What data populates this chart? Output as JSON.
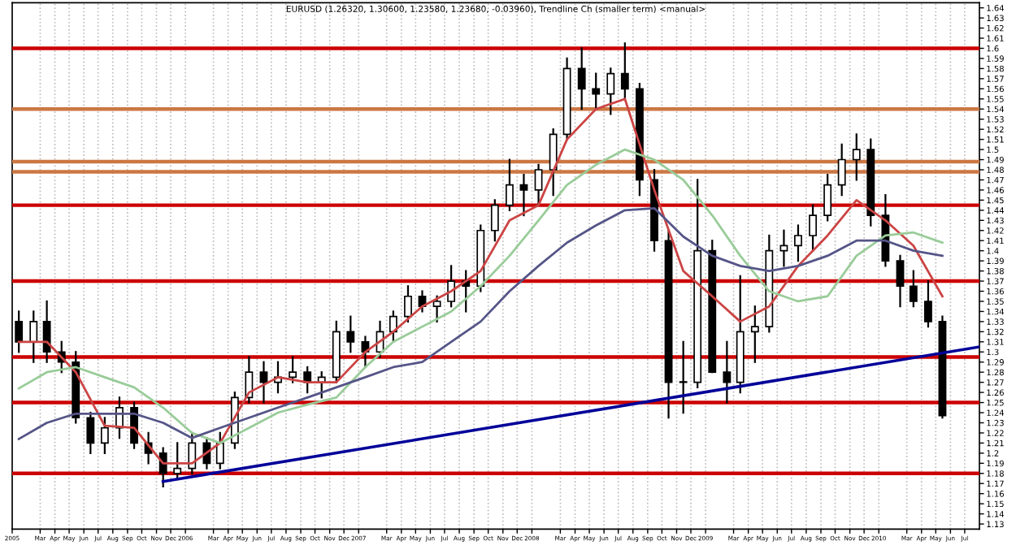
{
  "chart_data": {
    "type": "candlestick",
    "title": "EURUSD (1.26320, 1.30600, 1.23580, 1.23680, -0.03960), Trendline Ch (smaller term) <manual>",
    "x": [
      "2005-01-15",
      "2005-02-15",
      "2005-03-15",
      "2005-04-15",
      "2005-05-15",
      "2005-06-15",
      "2005-07-15",
      "2005-08-15",
      "2005-09-15",
      "2005-10-15",
      "2005-11-15",
      "2005-12-15",
      "2006-01-15",
      "2006-02-15",
      "2006-03-15",
      "2006-04-15",
      "2006-05-15",
      "2006-06-15",
      "2006-07-15",
      "2006-08-15",
      "2006-09-15",
      "2006-10-15",
      "2006-11-15",
      "2006-12-15",
      "2007-01-15",
      "2007-02-15",
      "2007-03-15",
      "2007-04-15",
      "2007-05-15",
      "2007-06-15",
      "2007-07-15",
      "2007-08-15",
      "2007-09-15",
      "2007-10-15",
      "2007-11-15",
      "2007-12-15",
      "2008-01-15",
      "2008-02-15",
      "2008-03-15",
      "2008-04-15",
      "2008-05-15",
      "2008-06-15",
      "2008-07-15",
      "2008-08-15",
      "2008-09-15",
      "2008-10-15",
      "2008-11-15",
      "2008-12-15",
      "2009-01-15",
      "2009-02-15",
      "2009-03-15",
      "2009-04-15",
      "2009-05-15",
      "2009-06-15",
      "2009-07-15",
      "2009-08-15",
      "2009-09-15",
      "2009-10-15",
      "2009-11-15",
      "2009-12-15",
      "2010-01-15",
      "2010-02-15",
      "2010-03-15",
      "2010-04-15",
      "2010-05-15"
    ],
    "ohlc": [
      [
        1.33,
        1.34,
        1.3,
        1.31
      ],
      [
        1.31,
        1.34,
        1.29,
        1.33
      ],
      [
        1.33,
        1.35,
        1.29,
        1.3
      ],
      [
        1.3,
        1.31,
        1.28,
        1.29
      ],
      [
        1.29,
        1.3,
        1.23,
        1.235
      ],
      [
        1.235,
        1.24,
        1.2,
        1.21
      ],
      [
        1.21,
        1.235,
        1.2,
        1.225
      ],
      [
        1.225,
        1.255,
        1.215,
        1.245
      ],
      [
        1.245,
        1.25,
        1.205,
        1.21
      ],
      [
        1.21,
        1.22,
        1.19,
        1.2
      ],
      [
        1.2,
        1.205,
        1.167,
        1.18
      ],
      [
        1.18,
        1.21,
        1.175,
        1.185
      ],
      [
        1.185,
        1.22,
        1.18,
        1.21
      ],
      [
        1.21,
        1.215,
        1.185,
        1.19
      ],
      [
        1.19,
        1.22,
        1.185,
        1.21
      ],
      [
        1.21,
        1.26,
        1.205,
        1.255
      ],
      [
        1.255,
        1.295,
        1.25,
        1.28
      ],
      [
        1.28,
        1.29,
        1.25,
        1.27
      ],
      [
        1.27,
        1.29,
        1.26,
        1.275
      ],
      [
        1.275,
        1.295,
        1.27,
        1.28
      ],
      [
        1.28,
        1.285,
        1.26,
        1.27
      ],
      [
        1.27,
        1.28,
        1.255,
        1.275
      ],
      [
        1.275,
        1.33,
        1.27,
        1.32
      ],
      [
        1.32,
        1.335,
        1.3,
        1.31
      ],
      [
        1.31,
        1.315,
        1.285,
        1.3
      ],
      [
        1.3,
        1.33,
        1.295,
        1.32
      ],
      [
        1.32,
        1.34,
        1.31,
        1.335
      ],
      [
        1.335,
        1.365,
        1.33,
        1.355
      ],
      [
        1.355,
        1.36,
        1.34,
        1.345
      ],
      [
        1.345,
        1.355,
        1.33,
        1.35
      ],
      [
        1.35,
        1.385,
        1.345,
        1.37
      ],
      [
        1.37,
        1.38,
        1.34,
        1.365
      ],
      [
        1.365,
        1.425,
        1.36,
        1.42
      ],
      [
        1.42,
        1.45,
        1.41,
        1.445
      ],
      [
        1.445,
        1.49,
        1.44,
        1.465
      ],
      [
        1.465,
        1.475,
        1.435,
        1.46
      ],
      [
        1.46,
        1.485,
        1.445,
        1.48
      ],
      [
        1.48,
        1.52,
        1.455,
        1.515
      ],
      [
        1.515,
        1.59,
        1.51,
        1.58
      ],
      [
        1.58,
        1.6,
        1.54,
        1.56
      ],
      [
        1.56,
        1.575,
        1.54,
        1.555
      ],
      [
        1.555,
        1.58,
        1.535,
        1.575
      ],
      [
        1.575,
        1.605,
        1.55,
        1.56
      ],
      [
        1.56,
        1.565,
        1.455,
        1.47
      ],
      [
        1.47,
        1.48,
        1.4,
        1.41
      ],
      [
        1.41,
        1.42,
        1.235,
        1.27
      ],
      [
        1.27,
        1.31,
        1.24,
        1.27
      ],
      [
        1.27,
        1.47,
        1.265,
        1.4
      ],
      [
        1.4,
        1.41,
        1.28,
        1.28
      ],
      [
        1.28,
        1.31,
        1.25,
        1.27
      ],
      [
        1.27,
        1.375,
        1.26,
        1.32
      ],
      [
        1.32,
        1.345,
        1.29,
        1.325
      ],
      [
        1.325,
        1.415,
        1.32,
        1.4
      ],
      [
        1.4,
        1.42,
        1.385,
        1.405
      ],
      [
        1.405,
        1.425,
        1.39,
        1.415
      ],
      [
        1.415,
        1.445,
        1.4,
        1.435
      ],
      [
        1.435,
        1.475,
        1.43,
        1.465
      ],
      [
        1.465,
        1.505,
        1.455,
        1.49
      ],
      [
        1.49,
        1.515,
        1.47,
        1.5
      ],
      [
        1.5,
        1.51,
        1.425,
        1.435
      ],
      [
        1.435,
        1.455,
        1.385,
        1.39
      ],
      [
        1.39,
        1.395,
        1.345,
        1.365
      ],
      [
        1.365,
        1.38,
        1.345,
        1.35
      ],
      [
        1.35,
        1.37,
        1.325,
        1.33
      ],
      [
        1.33,
        1.335,
        1.235,
        1.237
      ]
    ],
    "series": [
      {
        "type": "line",
        "color": "#cc4444",
        "x": [
          "2005-01-15",
          "2005-03-15",
          "2005-05-15",
          "2005-07-15",
          "2005-09-15",
          "2005-11-15",
          "2006-01-15",
          "2006-03-15",
          "2006-05-15",
          "2006-07-15",
          "2006-09-15",
          "2006-11-15",
          "2007-01-15",
          "2007-03-15",
          "2007-05-15",
          "2007-07-15",
          "2007-09-15",
          "2007-11-15",
          "2008-01-15",
          "2008-03-15",
          "2008-05-15",
          "2008-07-15",
          "2008-09-15",
          "2008-11-15",
          "2009-01-15",
          "2009-03-15",
          "2009-05-15",
          "2009-07-15",
          "2009-09-15",
          "2009-11-15",
          "2010-01-15",
          "2010-03-15",
          "2010-05-15"
        ],
        "values": [
          1.31,
          1.31,
          1.28,
          1.227,
          1.225,
          1.19,
          1.19,
          1.21,
          1.26,
          1.275,
          1.27,
          1.27,
          1.3,
          1.32,
          1.345,
          1.36,
          1.38,
          1.43,
          1.445,
          1.51,
          1.54,
          1.55,
          1.46,
          1.38,
          1.355,
          1.33,
          1.345,
          1.385,
          1.415,
          1.45,
          1.43,
          1.405,
          1.355
        ]
      },
      {
        "type": "line",
        "color": "#99cc99",
        "x": [
          "2005-01-15",
          "2005-03-15",
          "2005-05-15",
          "2005-07-15",
          "2005-09-15",
          "2005-11-15",
          "2006-01-15",
          "2006-03-15",
          "2006-05-15",
          "2006-07-15",
          "2006-09-15",
          "2006-11-15",
          "2007-01-15",
          "2007-03-15",
          "2007-05-15",
          "2007-07-15",
          "2007-09-15",
          "2007-11-15",
          "2008-01-15",
          "2008-03-15",
          "2008-05-15",
          "2008-07-15",
          "2008-09-15",
          "2008-11-15",
          "2009-01-15",
          "2009-03-15",
          "2009-05-15",
          "2009-07-15",
          "2009-09-15",
          "2009-11-15",
          "2010-01-15",
          "2010-03-15",
          "2010-05-15"
        ],
        "values": [
          1.264,
          1.28,
          1.285,
          1.275,
          1.265,
          1.245,
          1.22,
          1.21,
          1.225,
          1.24,
          1.248,
          1.255,
          1.285,
          1.31,
          1.325,
          1.34,
          1.365,
          1.395,
          1.43,
          1.465,
          1.485,
          1.5,
          1.49,
          1.47,
          1.435,
          1.395,
          1.36,
          1.35,
          1.355,
          1.395,
          1.415,
          1.418,
          1.408
        ]
      },
      {
        "type": "line",
        "color": "#555588",
        "x": [
          "2005-01-15",
          "2005-03-15",
          "2005-05-15",
          "2005-07-15",
          "2005-09-15",
          "2005-11-15",
          "2006-01-15",
          "2006-03-15",
          "2006-05-15",
          "2006-07-15",
          "2006-09-15",
          "2006-11-15",
          "2007-01-15",
          "2007-03-15",
          "2007-05-15",
          "2007-07-15",
          "2007-09-15",
          "2007-11-15",
          "2008-01-15",
          "2008-03-15",
          "2008-05-15",
          "2008-07-15",
          "2008-09-15",
          "2008-11-15",
          "2009-01-15",
          "2009-03-15",
          "2009-05-15",
          "2009-07-15",
          "2009-09-15",
          "2009-11-15",
          "2010-01-15",
          "2010-03-15",
          "2010-05-15"
        ],
        "values": [
          1.214,
          1.23,
          1.239,
          1.239,
          1.239,
          1.23,
          1.215,
          1.225,
          1.235,
          1.245,
          1.255,
          1.265,
          1.275,
          1.285,
          1.29,
          1.31,
          1.33,
          1.36,
          1.385,
          1.408,
          1.425,
          1.44,
          1.442,
          1.414,
          1.395,
          1.385,
          1.38,
          1.385,
          1.395,
          1.41,
          1.41,
          1.4,
          1.395
        ]
      },
      {
        "type": "line",
        "color": "#000099",
        "x": [
          "2005-11-15",
          "2010-08-01"
        ],
        "values": [
          1.172,
          1.305
        ]
      }
    ],
    "ref_lines": [
      {
        "axis": "y",
        "value": 1.6,
        "color": "#cc0000"
      },
      {
        "axis": "y",
        "value": 1.54,
        "color": "#cc7744"
      },
      {
        "axis": "y",
        "value": 1.488,
        "color": "#cc7744"
      },
      {
        "axis": "y",
        "value": 1.478,
        "color": "#cc7744"
      },
      {
        "axis": "y",
        "value": 1.445,
        "color": "#cc0000"
      },
      {
        "axis": "y",
        "value": 1.37,
        "color": "#cc0000"
      },
      {
        "axis": "y",
        "value": 1.295,
        "color": "#cc0000"
      },
      {
        "axis": "y",
        "value": 1.25,
        "color": "#cc0000"
      },
      {
        "axis": "y",
        "value": 1.18,
        "color": "#cc0000"
      }
    ],
    "xlim": [
      "2005-01-01",
      "2010-08-01"
    ],
    "xticks": [
      {
        "value": "2005-01-01",
        "label": "2005"
      },
      {
        "value": "2005-03-01",
        "label": "Mar"
      },
      {
        "value": "2005-04-01",
        "label": "Apr"
      },
      {
        "value": "2005-05-01",
        "label": "May"
      },
      {
        "value": "2005-06-01",
        "label": "Jun"
      },
      {
        "value": "2005-07-01",
        "label": "Jul"
      },
      {
        "value": "2005-08-01",
        "label": "Aug"
      },
      {
        "value": "2005-09-01",
        "label": "Sep"
      },
      {
        "value": "2005-10-01",
        "label": "Oct"
      },
      {
        "value": "2005-11-01",
        "label": "Nov"
      },
      {
        "value": "2005-12-01",
        "label": "Dec"
      },
      {
        "value": "2006-01-01",
        "label": "2006"
      },
      {
        "value": "2006-03-01",
        "label": "Mar"
      },
      {
        "value": "2006-04-01",
        "label": "Apr"
      },
      {
        "value": "2006-05-01",
        "label": "May"
      },
      {
        "value": "2006-06-01",
        "label": "Jun"
      },
      {
        "value": "2006-07-01",
        "label": "Jul"
      },
      {
        "value": "2006-08-01",
        "label": "Aug"
      },
      {
        "value": "2006-09-01",
        "label": "Sep"
      },
      {
        "value": "2006-10-01",
        "label": "Oct"
      },
      {
        "value": "2006-11-01",
        "label": "Nov"
      },
      {
        "value": "2006-12-01",
        "label": "Dec"
      },
      {
        "value": "2007-01-01",
        "label": "2007"
      },
      {
        "value": "2007-03-01",
        "label": "Mar"
      },
      {
        "value": "2007-04-01",
        "label": "Apr"
      },
      {
        "value": "2007-05-01",
        "label": "May"
      },
      {
        "value": "2007-06-01",
        "label": "Jun"
      },
      {
        "value": "2007-07-01",
        "label": "Jul"
      },
      {
        "value": "2007-08-01",
        "label": "Aug"
      },
      {
        "value": "2007-09-01",
        "label": "Sep"
      },
      {
        "value": "2007-10-01",
        "label": "Oct"
      },
      {
        "value": "2007-11-01",
        "label": "Nov"
      },
      {
        "value": "2007-12-01",
        "label": "Dec"
      },
      {
        "value": "2008-01-01",
        "label": "2008"
      },
      {
        "value": "2008-03-01",
        "label": "Mar"
      },
      {
        "value": "2008-04-01",
        "label": "Apr"
      },
      {
        "value": "2008-05-01",
        "label": "May"
      },
      {
        "value": "2008-06-01",
        "label": "Jun"
      },
      {
        "value": "2008-07-01",
        "label": "Jul"
      },
      {
        "value": "2008-08-01",
        "label": "Aug"
      },
      {
        "value": "2008-09-01",
        "label": "Sep"
      },
      {
        "value": "2008-10-01",
        "label": "Oct"
      },
      {
        "value": "2008-11-01",
        "label": "Nov"
      },
      {
        "value": "2008-12-01",
        "label": "Dec"
      },
      {
        "value": "2009-01-01",
        "label": "2009"
      },
      {
        "value": "2009-03-01",
        "label": "Mar"
      },
      {
        "value": "2009-04-01",
        "label": "Apr"
      },
      {
        "value": "2009-05-01",
        "label": "May"
      },
      {
        "value": "2009-06-01",
        "label": "Jun"
      },
      {
        "value": "2009-07-01",
        "label": "Jul"
      },
      {
        "value": "2009-08-01",
        "label": "Aug"
      },
      {
        "value": "2009-09-01",
        "label": "Sep"
      },
      {
        "value": "2009-10-01",
        "label": "Oct"
      },
      {
        "value": "2009-11-01",
        "label": "Nov"
      },
      {
        "value": "2009-12-01",
        "label": "Dec"
      },
      {
        "value": "2010-01-01",
        "label": "2010"
      },
      {
        "value": "2010-03-01",
        "label": "Mar"
      },
      {
        "value": "2010-04-01",
        "label": "Apr"
      },
      {
        "value": "2010-05-01",
        "label": "May"
      },
      {
        "value": "2010-06-01",
        "label": "Jun"
      },
      {
        "value": "2010-07-01",
        "label": "Jul"
      }
    ],
    "ylim": [
      1.125,
      1.645
    ],
    "yticks": [
      1.13,
      1.14,
      1.15,
      1.16,
      1.17,
      1.18,
      1.19,
      1.2,
      1.21,
      1.22,
      1.23,
      1.24,
      1.25,
      1.26,
      1.27,
      1.28,
      1.29,
      1.3,
      1.31,
      1.32,
      1.33,
      1.34,
      1.35,
      1.36,
      1.37,
      1.38,
      1.39,
      1.4,
      1.41,
      1.42,
      1.43,
      1.44,
      1.45,
      1.46,
      1.47,
      1.48,
      1.49,
      1.5,
      1.51,
      1.52,
      1.53,
      1.54,
      1.55,
      1.56,
      1.57,
      1.58,
      1.59,
      1.6,
      1.61,
      1.62,
      1.63,
      1.64
    ],
    "grid": "x"
  }
}
